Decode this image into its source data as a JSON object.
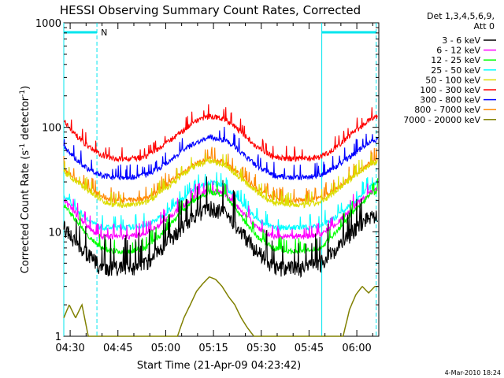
{
  "chart_data": {
    "type": "line",
    "title": "HESSI Observing Summary Count Rates, Corrected",
    "xlabel": "Start Time (21-Apr-09 04:23:42)",
    "ylabel_parts": [
      "Corrected Count Rate (s",
      "-1",
      " detector",
      "-1",
      ")"
    ],
    "yscale": "log",
    "ylim": [
      1,
      1000
    ],
    "xlim_minutes": [
      4.3,
      103.2
    ],
    "x_ticks": [
      {
        "label": "04:30",
        "m": 6.3
      },
      {
        "label": "04:45",
        "m": 21.3
      },
      {
        "label": "05:00",
        "m": 36.3
      },
      {
        "label": "05:15",
        "m": 51.3
      },
      {
        "label": "05:30",
        "m": 66.3
      },
      {
        "label": "05:45",
        "m": 81.3
      },
      {
        "label": "06:00",
        "m": 96.3
      }
    ],
    "y_ticks": [
      {
        "label": "1",
        "v": 1
      },
      {
        "label": "10",
        "v": 10
      },
      {
        "label": "100",
        "v": 100
      },
      {
        "label": "1000",
        "v": 1000
      }
    ],
    "legend_header": [
      "Det 1,3,4,5,6,9,",
      "Att 0"
    ],
    "legend_placement": "right",
    "series": [
      {
        "name": "3 - 6 keV",
        "color": "#000000",
        "x": [
          4.3,
          8,
          12,
          16,
          20,
          25,
          30,
          35,
          40,
          45,
          50,
          55,
          60,
          65,
          70,
          75,
          80,
          85,
          90,
          95,
          100,
          103
        ],
        "y": [
          11,
          8,
          6,
          4.5,
          4.5,
          4.5,
          5,
          7,
          10,
          14,
          17,
          15,
          10,
          6.5,
          4.5,
          4.5,
          4.5,
          5,
          7,
          10,
          14,
          15
        ]
      },
      {
        "name": "6 - 12 keV",
        "color": "#ff00ff",
        "x": [
          4.3,
          8,
          12,
          16,
          20,
          25,
          30,
          35,
          40,
          45,
          50,
          55,
          60,
          65,
          70,
          75,
          80,
          85,
          90,
          95,
          100,
          103
        ],
        "y": [
          20,
          15,
          11,
          9,
          9,
          9,
          9.5,
          12,
          16,
          21,
          25,
          23,
          16,
          11,
          9,
          9,
          9,
          9.5,
          12,
          17,
          23,
          26
        ]
      },
      {
        "name": "12 - 25 keV",
        "color": "#00ff00",
        "x": [
          4.3,
          8,
          12,
          16,
          20,
          25,
          30,
          35,
          40,
          45,
          50,
          55,
          60,
          65,
          70,
          75,
          80,
          85,
          90,
          95,
          100,
          103
        ],
        "y": [
          18,
          13,
          9,
          7,
          6.5,
          6.5,
          7,
          9.5,
          14,
          20,
          24,
          22,
          14,
          9,
          7,
          6.5,
          6.5,
          7,
          10,
          15,
          22,
          25
        ]
      },
      {
        "name": "25 - 50 keV",
        "color": "#00ffff",
        "x": [
          4.3,
          8,
          12,
          16,
          20,
          25,
          30,
          35,
          40,
          45,
          50,
          55,
          60,
          65,
          70,
          75,
          80,
          85,
          90,
          95,
          100,
          103
        ],
        "y": [
          22,
          17,
          13,
          11,
          11,
          11,
          11.5,
          14,
          19,
          25,
          30,
          27,
          19,
          13,
          11,
          11,
          11,
          11.5,
          14,
          19,
          26,
          30
        ]
      },
      {
        "name": "50 - 100 keV",
        "color": "#dddd00",
        "x": [
          4.3,
          8,
          12,
          16,
          20,
          25,
          30,
          35,
          40,
          45,
          50,
          55,
          60,
          65,
          70,
          75,
          80,
          85,
          90,
          95,
          100,
          103
        ],
        "y": [
          38,
          30,
          25,
          20,
          18,
          18,
          19,
          24,
          32,
          42,
          48,
          44,
          32,
          24,
          19,
          18,
          18,
          19,
          25,
          33,
          43,
          48
        ]
      },
      {
        "name": "100 - 300 keV",
        "color": "#ff0000",
        "x": [
          4.3,
          8,
          12,
          16,
          20,
          25,
          30,
          35,
          40,
          45,
          50,
          55,
          60,
          65,
          70,
          75,
          80,
          85,
          90,
          95,
          100,
          103
        ],
        "y": [
          115,
          85,
          65,
          55,
          50,
          50,
          52,
          65,
          85,
          110,
          128,
          120,
          90,
          65,
          52,
          50,
          50,
          52,
          65,
          88,
          115,
          130
        ]
      },
      {
        "name": "300 - 800 keV",
        "color": "#0000ff",
        "x": [
          4.3,
          8,
          12,
          16,
          20,
          25,
          30,
          35,
          40,
          45,
          50,
          55,
          60,
          65,
          70,
          75,
          80,
          85,
          90,
          95,
          100,
          103
        ],
        "y": [
          65,
          50,
          40,
          35,
          33,
          33,
          35,
          42,
          55,
          70,
          80,
          76,
          58,
          42,
          35,
          33,
          33,
          35,
          42,
          55,
          70,
          76
        ]
      },
      {
        "name": "800 - 7000 keV",
        "color": "#ff8800",
        "x": [
          4.3,
          8,
          12,
          16,
          20,
          25,
          30,
          35,
          40,
          45,
          50,
          55,
          60,
          65,
          70,
          75,
          80,
          85,
          90,
          95,
          100,
          103
        ],
        "y": [
          40,
          32,
          26,
          22,
          20,
          20,
          21,
          26,
          34,
          44,
          50,
          46,
          34,
          26,
          21,
          20,
          20,
          21,
          26,
          34,
          44,
          50
        ]
      },
      {
        "name": "7000 - 20000 keV",
        "color": "#808000",
        "x": [
          4.3,
          6,
          8,
          10,
          12,
          40,
          42,
          44,
          46,
          48,
          50,
          52,
          54,
          56,
          58,
          60,
          62,
          64,
          92,
          94,
          96,
          98,
          100,
          102,
          103
        ],
        "y": [
          1.5,
          2,
          1.5,
          2,
          1,
          1,
          1.5,
          2,
          2.7,
          3.2,
          3.7,
          3.5,
          3,
          2.4,
          2,
          1.5,
          1.2,
          1,
          1,
          1.8,
          2.5,
          3,
          2.6,
          3,
          3
        ]
      }
    ],
    "annotations": {
      "night_marker": "N",
      "boundaries_minutes": [
        4.3,
        14.7,
        85.3,
        102.4
      ]
    },
    "colors": {
      "boundary": "#00e5ee",
      "axes": "#000000",
      "background": "#ffffff"
    }
  },
  "footer": {
    "date_stamp": "4-Mar-2010 18:24"
  }
}
